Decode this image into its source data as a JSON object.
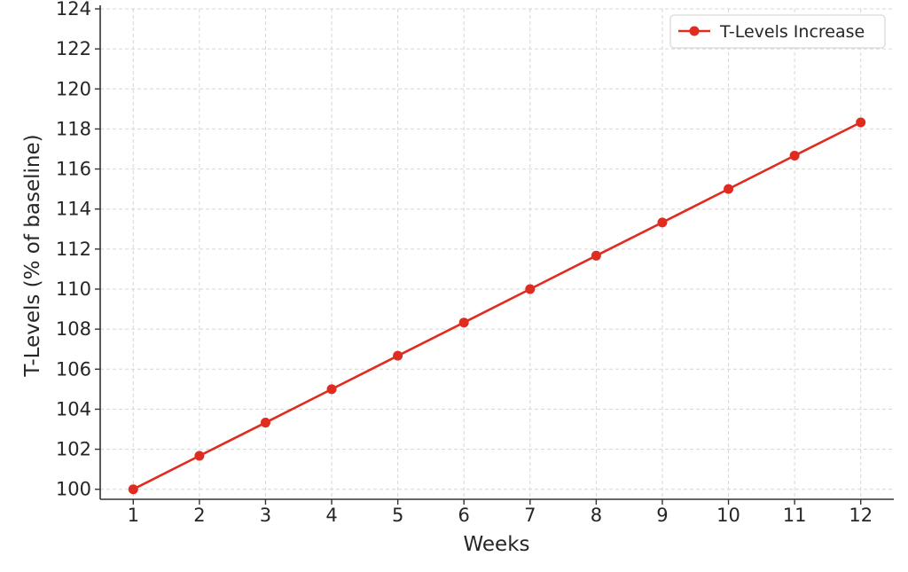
{
  "chart_data": {
    "type": "line",
    "title": "",
    "xlabel": "Weeks",
    "ylabel": "T-Levels (% of baseline)",
    "x": [
      1,
      2,
      3,
      4,
      5,
      6,
      7,
      8,
      9,
      10,
      11,
      12
    ],
    "xlim": [
      0.5,
      12.5
    ],
    "ylim": [
      99.5,
      124
    ],
    "yticks": [
      100,
      102,
      104,
      106,
      108,
      110,
      112,
      114,
      116,
      118,
      120,
      122,
      124
    ],
    "grid": true,
    "legend_position": "top-right",
    "series": [
      {
        "name": "T-Levels Increase",
        "color": "#e02b20",
        "marker": "circle",
        "values": [
          100,
          101.67,
          103.33,
          105,
          106.67,
          108.33,
          110,
          111.67,
          113.33,
          115,
          116.67,
          118.33
        ]
      }
    ]
  }
}
